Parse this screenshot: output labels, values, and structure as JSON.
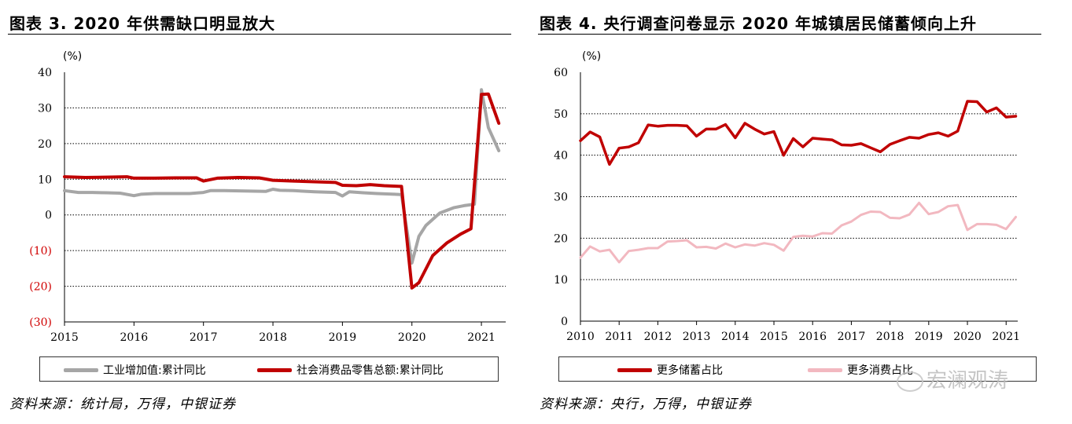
{
  "left": {
    "title": "图表 3. 2020 年供需缺口明显放大",
    "unit": "(%)",
    "source": "资料来源：统计局，万得，中银证券",
    "y_tick_labels": [
      "40",
      "30",
      "20",
      "10",
      "0",
      "(10)",
      "(20)",
      "(30)"
    ],
    "x_tick_labels": [
      "2015",
      "2016",
      "2017",
      "2018",
      "2019",
      "2020",
      "2021"
    ],
    "legend": [
      "工业增加值:累计同比",
      "社会消费品零售总额:累计同比"
    ]
  },
  "right": {
    "title": "图表 4. 央行调查问卷显示 2020 年城镇居民储蓄倾向上升",
    "unit": "(%)",
    "source": "资料来源：央行，万得，中银证券",
    "y_tick_labels": [
      "60",
      "50",
      "40",
      "30",
      "20",
      "10",
      "0"
    ],
    "x_tick_labels": [
      "2010",
      "2011",
      "2012",
      "2013",
      "2014",
      "2015",
      "2016",
      "2017",
      "2018",
      "2019",
      "2020",
      "2021"
    ],
    "legend": [
      "更多储蓄占比",
      "更多消费占比"
    ]
  },
  "watermark": "宏澜观涛",
  "colors": {
    "red": "#c00000",
    "gray": "#a6a6a6",
    "pink": "#f2b8c0",
    "neg_label": "#d00000"
  },
  "chart_data": [
    {
      "type": "line",
      "title": "图表 3. 2020 年供需缺口明显放大",
      "ylabel": "(%)",
      "ylim": [
        -30,
        40
      ],
      "grid": true,
      "legend_position": "bottom",
      "x_axis": "monthly, 2015-01 to 2021-04",
      "series": [
        {
          "name": "工业增加值:累计同比",
          "color": "#a6a6a6",
          "x": [
            2015.0,
            2015.2,
            2015.4,
            2015.6,
            2015.8,
            2016.0,
            2016.1,
            2016.3,
            2016.5,
            2016.8,
            2017.0,
            2017.1,
            2017.3,
            2017.6,
            2017.9,
            2018.0,
            2018.1,
            2018.3,
            2018.6,
            2018.9,
            2019.0,
            2019.1,
            2019.3,
            2019.5,
            2019.75,
            2019.85,
            2020.0,
            2020.1,
            2020.2,
            2020.4,
            2020.6,
            2020.75,
            2020.9,
            2021.0,
            2021.1,
            2021.25
          ],
          "values": [
            6.8,
            6.3,
            6.3,
            6.2,
            6.1,
            5.4,
            5.8,
            6.0,
            6.0,
            6.0,
            6.3,
            6.8,
            6.8,
            6.7,
            6.6,
            7.2,
            6.9,
            6.8,
            6.5,
            6.3,
            5.3,
            6.5,
            6.2,
            6.0,
            5.8,
            5.7,
            -13.5,
            -6.0,
            -3.0,
            0.5,
            2.0,
            2.6,
            3.0,
            35.1,
            24.5,
            18.0
          ]
        },
        {
          "name": "社会消费品零售总额:累计同比",
          "color": "#c00000",
          "x": [
            2015.0,
            2015.3,
            2015.6,
            2015.9,
            2016.0,
            2016.3,
            2016.6,
            2016.9,
            2017.0,
            2017.2,
            2017.5,
            2017.8,
            2018.0,
            2018.3,
            2018.6,
            2018.9,
            2019.0,
            2019.2,
            2019.4,
            2019.6,
            2019.85,
            2020.0,
            2020.1,
            2020.3,
            2020.5,
            2020.7,
            2020.85,
            2021.0,
            2021.1,
            2021.25
          ],
          "values": [
            10.7,
            10.5,
            10.6,
            10.7,
            10.3,
            10.3,
            10.4,
            10.4,
            9.5,
            10.3,
            10.5,
            10.4,
            9.7,
            9.5,
            9.3,
            9.1,
            8.3,
            8.2,
            8.5,
            8.2,
            8.0,
            -20.5,
            -19.0,
            -11.4,
            -7.9,
            -5.4,
            -3.9,
            33.8,
            33.9,
            25.7
          ]
        }
      ]
    },
    {
      "type": "line",
      "title": "图表 4. 央行调查问卷显示 2020 年城镇居民储蓄倾向上升",
      "ylabel": "(%)",
      "ylim": [
        0,
        60
      ],
      "grid": true,
      "legend_position": "bottom",
      "x_axis": "quarterly, 2010Q1 to 2021Q2",
      "series": [
        {
          "name": "更多储蓄占比",
          "color": "#c00000",
          "x": [
            2010.0,
            2010.25,
            2010.5,
            2010.75,
            2011.0,
            2011.25,
            2011.5,
            2011.75,
            2012.0,
            2012.25,
            2012.5,
            2012.75,
            2013.0,
            2013.25,
            2013.5,
            2013.75,
            2014.0,
            2014.25,
            2014.5,
            2014.75,
            2015.0,
            2015.25,
            2015.5,
            2015.75,
            2016.0,
            2016.25,
            2016.5,
            2016.75,
            2017.0,
            2017.25,
            2017.5,
            2017.75,
            2018.0,
            2018.25,
            2018.5,
            2018.75,
            2019.0,
            2019.25,
            2019.5,
            2019.75,
            2020.0,
            2020.25,
            2020.5,
            2020.75,
            2021.0,
            2021.25
          ],
          "values": [
            43.5,
            45.6,
            44.4,
            37.8,
            41.7,
            42.0,
            43.0,
            47.3,
            47.0,
            47.2,
            47.2,
            47.1,
            44.6,
            46.3,
            46.3,
            47.4,
            44.2,
            47.7,
            46.3,
            45.1,
            45.7,
            40.0,
            44.0,
            42.0,
            44.1,
            43.9,
            43.7,
            42.5,
            42.4,
            42.8,
            41.8,
            40.8,
            42.6,
            43.5,
            44.3,
            44.1,
            45.0,
            45.4,
            44.6,
            45.8,
            53.0,
            52.9,
            50.4,
            51.4,
            49.2,
            49.4
          ]
        },
        {
          "name": "更多消费占比",
          "color": "#f2b8c0",
          "x": [
            2010.0,
            2010.25,
            2010.5,
            2010.75,
            2011.0,
            2011.25,
            2011.5,
            2011.75,
            2012.0,
            2012.25,
            2012.5,
            2012.75,
            2013.0,
            2013.25,
            2013.5,
            2013.75,
            2014.0,
            2014.25,
            2014.5,
            2014.75,
            2015.0,
            2015.25,
            2015.5,
            2015.75,
            2016.0,
            2016.25,
            2016.5,
            2016.75,
            2017.0,
            2017.25,
            2017.5,
            2017.75,
            2018.0,
            2018.25,
            2018.5,
            2018.75,
            2019.0,
            2019.25,
            2019.5,
            2019.75,
            2020.0,
            2020.25,
            2020.5,
            2020.75,
            2021.0,
            2021.25
          ],
          "values": [
            15.3,
            18.0,
            16.8,
            17.2,
            14.2,
            16.9,
            17.2,
            17.6,
            17.6,
            19.2,
            19.3,
            19.5,
            17.8,
            17.9,
            17.5,
            18.7,
            17.8,
            18.5,
            18.2,
            18.8,
            18.4,
            17.0,
            20.3,
            20.6,
            20.4,
            21.2,
            21.1,
            23.1,
            24.0,
            25.6,
            26.4,
            26.3,
            24.9,
            24.8,
            25.7,
            28.5,
            25.8,
            26.3,
            27.7,
            28.0,
            22.0,
            23.4,
            23.4,
            23.2,
            22.2,
            25.1
          ]
        }
      ]
    }
  ]
}
